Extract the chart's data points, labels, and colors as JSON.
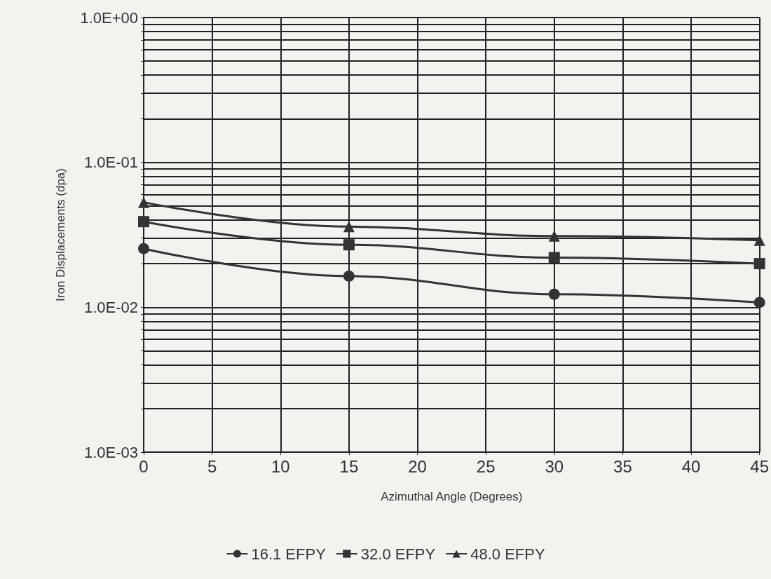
{
  "chart_data": {
    "type": "line",
    "xlabel": "Azimuthal Angle (Degrees)",
    "ylabel": "Iron Displacements (dpa)",
    "x": [
      0,
      15,
      30,
      45
    ],
    "series": [
      {
        "name": "16.1 EFPY",
        "color": "#333333",
        "marker": "circle",
        "values": [
          0.0254,
          0.0164,
          0.0123,
          0.0108
        ]
      },
      {
        "name": "32.0 EFPY",
        "color": "#333333",
        "marker": "square",
        "values": [
          0.039,
          0.027,
          0.022,
          0.02
        ]
      },
      {
        "name": "48.0 EFPY",
        "color": "#333333",
        "marker": "triangle",
        "values": [
          0.053,
          0.036,
          0.031,
          0.029
        ]
      }
    ],
    "log": "y",
    "xlim": [
      0,
      45
    ],
    "xticks": [
      0,
      5,
      10,
      15,
      20,
      25,
      30,
      35,
      40,
      45
    ],
    "ylim": [
      0.001,
      1
    ],
    "yticks": [
      {
        "value": 0.001,
        "label": "1.0E-03"
      },
      {
        "value": 0.002,
        "label": null
      },
      {
        "value": 0.003,
        "label": null
      },
      {
        "value": 0.004,
        "label": null
      },
      {
        "value": 0.005,
        "label": null
      },
      {
        "value": 0.006,
        "label": null
      },
      {
        "value": 0.007,
        "label": null
      },
      {
        "value": 0.008,
        "label": null
      },
      {
        "value": 0.009,
        "label": null
      },
      {
        "value": 0.01,
        "label": "1.0E-02"
      },
      {
        "value": 0.02,
        "label": null
      },
      {
        "value": 0.03,
        "label": null
      },
      {
        "value": 0.04,
        "label": null
      },
      {
        "value": 0.05,
        "label": null
      },
      {
        "value": 0.06,
        "label": null
      },
      {
        "value": 0.07,
        "label": null
      },
      {
        "value": 0.08,
        "label": null
      },
      {
        "value": 0.09,
        "label": null
      },
      {
        "value": 0.1,
        "label": "1.0E-01"
      },
      {
        "value": 0.2,
        "label": null
      },
      {
        "value": 0.3,
        "label": null
      },
      {
        "value": 0.4,
        "label": null
      },
      {
        "value": 0.5,
        "label": null
      },
      {
        "value": 0.6,
        "label": null
      },
      {
        "value": 0.7,
        "label": null
      },
      {
        "value": 0.8,
        "label": null
      },
      {
        "value": 0.9,
        "label": null
      },
      {
        "value": 1,
        "label": "1.0E+00"
      }
    ],
    "grid": true,
    "legend": "bottom",
    "line_style": "solid"
  }
}
